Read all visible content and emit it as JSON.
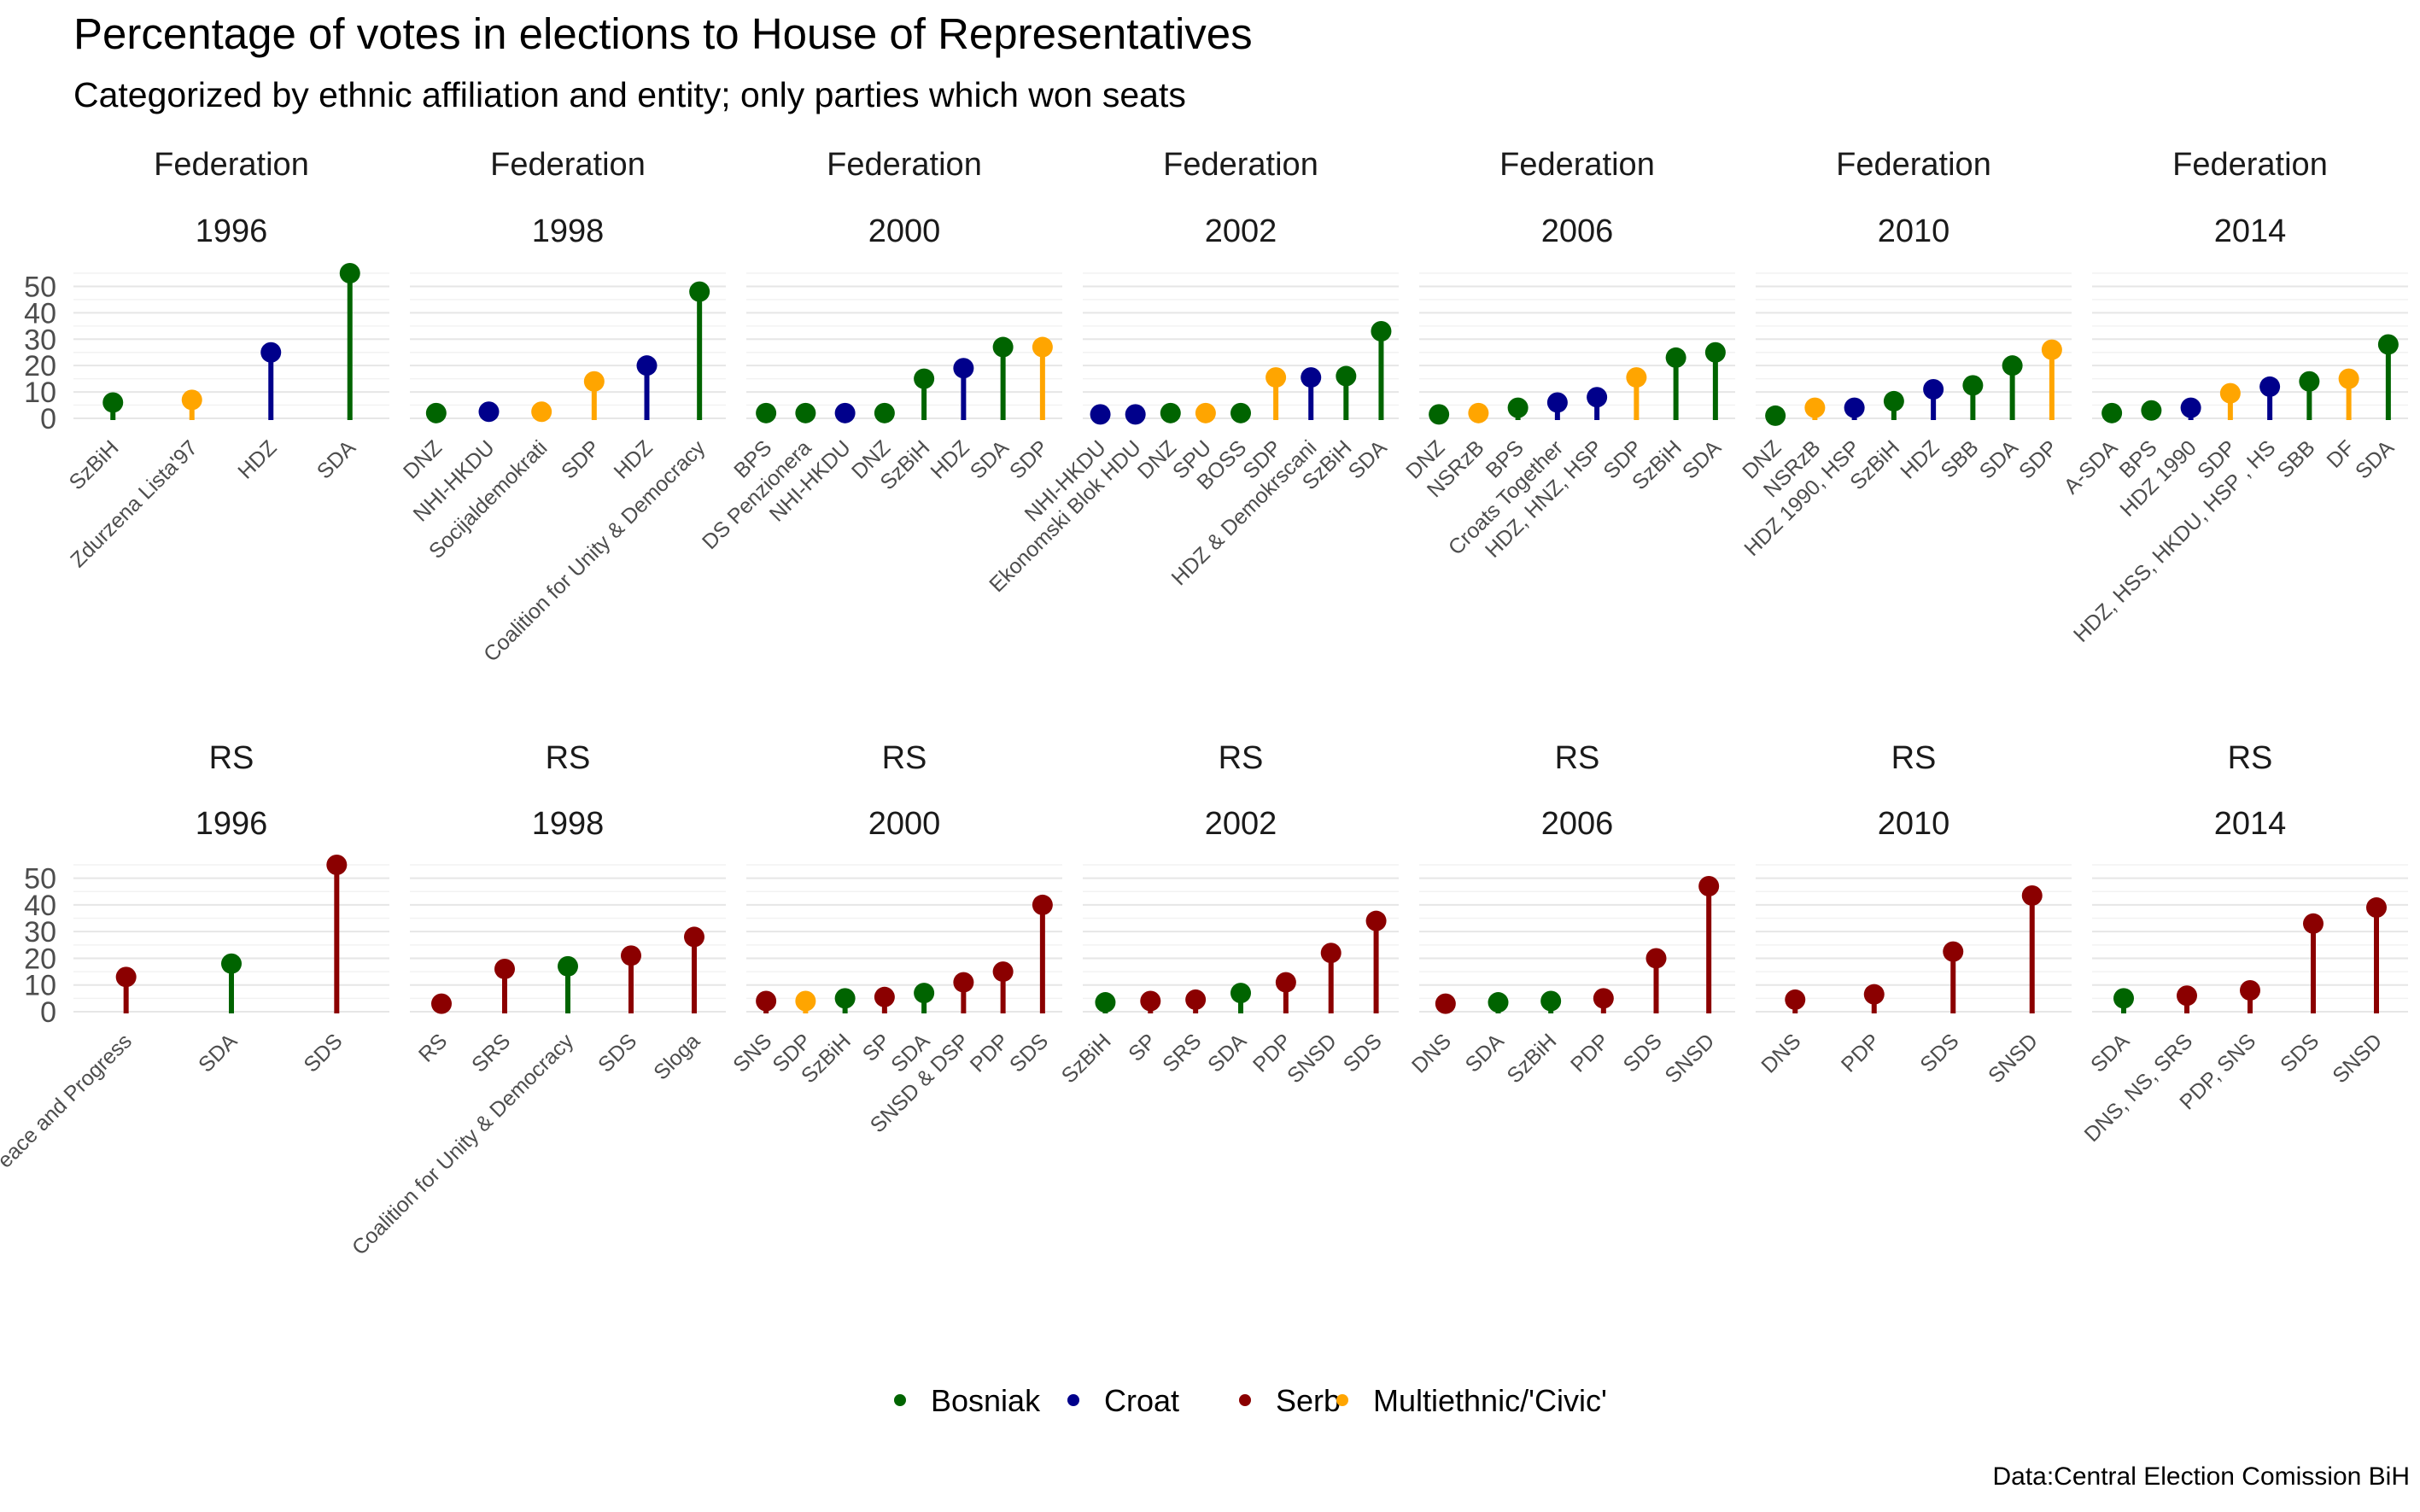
{
  "title": "Percentage of votes in elections to House of Representatives",
  "subtitle": "Categorized by ethnic affiliation and entity; only parties which won seats",
  "caption": "Data:Central Election Comission BiH",
  "chart_data": {
    "type": "lollipop",
    "facet_rows": [
      "Federation",
      "RS"
    ],
    "facet_cols": [
      "1996",
      "1998",
      "2000",
      "2002",
      "2006",
      "2010",
      "2014"
    ],
    "y_ticks": [
      0,
      10,
      20,
      30,
      40,
      50
    ],
    "ylim": [
      0,
      55
    ],
    "colors": {
      "Bosniak": "#006400",
      "Croat": "#00008B",
      "Serb": "#8B0000",
      "Multiethnic/'Civic'": "#FFA500"
    },
    "legend": {
      "position": "bottom",
      "entries": [
        "Bosniak",
        "Croat",
        "Serb",
        "Multiethnic/'Civic'"
      ]
    },
    "facets": [
      {
        "entity": "Federation",
        "year": "1996",
        "parties": [
          {
            "party": "SzBiH",
            "value": 6,
            "group": "Bosniak"
          },
          {
            "party": "Zdurzena Lista'97",
            "value": 7,
            "group": "Multiethnic/'Civic'"
          },
          {
            "party": "HDZ",
            "value": 25,
            "group": "Croat"
          },
          {
            "party": "SDA",
            "value": 55,
            "group": "Bosniak"
          }
        ]
      },
      {
        "entity": "Federation",
        "year": "1998",
        "parties": [
          {
            "party": "DNZ",
            "value": 2,
            "group": "Bosniak"
          },
          {
            "party": "NHI-HKDU",
            "value": 2.5,
            "group": "Croat"
          },
          {
            "party": "Socijaldemokrati",
            "value": 2.5,
            "group": "Multiethnic/'Civic'"
          },
          {
            "party": "SDP",
            "value": 14,
            "group": "Multiethnic/'Civic'"
          },
          {
            "party": "HDZ",
            "value": 20,
            "group": "Croat"
          },
          {
            "party": "Coalition for Unity & Democracy",
            "value": 48,
            "group": "Bosniak"
          }
        ]
      },
      {
        "entity": "Federation",
        "year": "2000",
        "parties": [
          {
            "party": "BPS",
            "value": 2,
            "group": "Bosniak"
          },
          {
            "party": "DS Penzionera",
            "value": 2,
            "group": "Bosniak"
          },
          {
            "party": "NHI-HKDU",
            "value": 2,
            "group": "Croat"
          },
          {
            "party": "DNZ",
            "value": 2,
            "group": "Bosniak"
          },
          {
            "party": "SzBiH",
            "value": 15,
            "group": "Bosniak"
          },
          {
            "party": "HDZ",
            "value": 19,
            "group": "Croat"
          },
          {
            "party": "SDA",
            "value": 27,
            "group": "Bosniak"
          },
          {
            "party": "SDP",
            "value": 27,
            "group": "Multiethnic/'Civic'"
          }
        ]
      },
      {
        "entity": "Federation",
        "year": "2002",
        "parties": [
          {
            "party": "NHI-HKDU",
            "value": 1.5,
            "group": "Croat"
          },
          {
            "party": "Ekonomski Blok HDU",
            "value": 1.5,
            "group": "Croat"
          },
          {
            "party": "DNZ",
            "value": 2,
            "group": "Bosniak"
          },
          {
            "party": "SPU",
            "value": 2,
            "group": "Multiethnic/'Civic'"
          },
          {
            "party": "BOSS",
            "value": 2,
            "group": "Bosniak"
          },
          {
            "party": "SDP",
            "value": 15.5,
            "group": "Multiethnic/'Civic'"
          },
          {
            "party": "HDZ & Demokrscani",
            "value": 15.5,
            "group": "Croat"
          },
          {
            "party": "SzBiH",
            "value": 16,
            "group": "Bosniak"
          },
          {
            "party": "SDA",
            "value": 33,
            "group": "Bosniak"
          }
        ]
      },
      {
        "entity": "Federation",
        "year": "2006",
        "parties": [
          {
            "party": "DNZ",
            "value": 1.5,
            "group": "Bosniak"
          },
          {
            "party": "NSRzB",
            "value": 2,
            "group": "Multiethnic/'Civic'"
          },
          {
            "party": "BPS",
            "value": 4,
            "group": "Bosniak"
          },
          {
            "party": "Croats Together",
            "value": 6,
            "group": "Croat"
          },
          {
            "party": "HDZ, HNZ, HSP",
            "value": 8,
            "group": "Croat"
          },
          {
            "party": "SDP",
            "value": 15.5,
            "group": "Multiethnic/'Civic'"
          },
          {
            "party": "SzBiH",
            "value": 23,
            "group": "Bosniak"
          },
          {
            "party": "SDA",
            "value": 25,
            "group": "Bosniak"
          }
        ]
      },
      {
        "entity": "Federation",
        "year": "2010",
        "parties": [
          {
            "party": "DNZ",
            "value": 1,
            "group": "Bosniak"
          },
          {
            "party": "NSRzB",
            "value": 4,
            "group": "Multiethnic/'Civic'"
          },
          {
            "party": "HDZ 1990, HSP",
            "value": 4,
            "group": "Croat"
          },
          {
            "party": "SzBiH",
            "value": 6.5,
            "group": "Bosniak"
          },
          {
            "party": "HDZ",
            "value": 11,
            "group": "Croat"
          },
          {
            "party": "SBB",
            "value": 12.5,
            "group": "Bosniak"
          },
          {
            "party": "SDA",
            "value": 20,
            "group": "Bosniak"
          },
          {
            "party": "SDP",
            "value": 26,
            "group": "Multiethnic/'Civic'"
          }
        ]
      },
      {
        "entity": "Federation",
        "year": "2014",
        "parties": [
          {
            "party": "A-SDA",
            "value": 2,
            "group": "Bosniak"
          },
          {
            "party": "BPS",
            "value": 3,
            "group": "Bosniak"
          },
          {
            "party": "HDZ 1990",
            "value": 4,
            "group": "Croat"
          },
          {
            "party": "SDP",
            "value": 9.5,
            "group": "Multiethnic/'Civic'"
          },
          {
            "party": "HDZ, HSS, HKDU, HSP , HS",
            "value": 12,
            "group": "Croat"
          },
          {
            "party": "SBB",
            "value": 14,
            "group": "Bosniak"
          },
          {
            "party": "DF",
            "value": 15,
            "group": "Multiethnic/'Civic'"
          },
          {
            "party": "SDA",
            "value": 28,
            "group": "Bosniak"
          }
        ]
      },
      {
        "entity": "RS",
        "year": "1996",
        "parties": [
          {
            "party": "Alliance for Peace and Progress",
            "value": 13,
            "group": "Serb"
          },
          {
            "party": "SDA",
            "value": 18,
            "group": "Bosniak"
          },
          {
            "party": "SDS",
            "value": 55,
            "group": "Serb"
          }
        ]
      },
      {
        "entity": "RS",
        "year": "1998",
        "parties": [
          {
            "party": "RS",
            "value": 3,
            "group": "Serb"
          },
          {
            "party": "SRS",
            "value": 16,
            "group": "Serb"
          },
          {
            "party": "Coalition for Unity & Democracy",
            "value": 17,
            "group": "Bosniak"
          },
          {
            "party": "SDS",
            "value": 21,
            "group": "Serb"
          },
          {
            "party": "Sloga",
            "value": 28,
            "group": "Serb"
          }
        ]
      },
      {
        "entity": "RS",
        "year": "2000",
        "parties": [
          {
            "party": "SNS",
            "value": 4,
            "group": "Serb"
          },
          {
            "party": "SDP",
            "value": 4,
            "group": "Multiethnic/'Civic'"
          },
          {
            "party": "SzBiH",
            "value": 5,
            "group": "Bosniak"
          },
          {
            "party": "SP",
            "value": 5.5,
            "group": "Serb"
          },
          {
            "party": "SDA",
            "value": 7,
            "group": "Bosniak"
          },
          {
            "party": "SNSD & DSP",
            "value": 11,
            "group": "Serb"
          },
          {
            "party": "PDP",
            "value": 15,
            "group": "Serb"
          },
          {
            "party": "SDS",
            "value": 40,
            "group": "Serb"
          }
        ]
      },
      {
        "entity": "RS",
        "year": "2002",
        "parties": [
          {
            "party": "SzBiH",
            "value": 3.5,
            "group": "Bosniak"
          },
          {
            "party": "SP",
            "value": 4,
            "group": "Serb"
          },
          {
            "party": "SRS",
            "value": 4.5,
            "group": "Serb"
          },
          {
            "party": "SDA",
            "value": 7,
            "group": "Bosniak"
          },
          {
            "party": "PDP",
            "value": 11,
            "group": "Serb"
          },
          {
            "party": "SNSD",
            "value": 22,
            "group": "Serb"
          },
          {
            "party": "SDS",
            "value": 34,
            "group": "Serb"
          }
        ]
      },
      {
        "entity": "RS",
        "year": "2006",
        "parties": [
          {
            "party": "DNS",
            "value": 3,
            "group": "Serb"
          },
          {
            "party": "SDA",
            "value": 3.5,
            "group": "Bosniak"
          },
          {
            "party": "SzBiH",
            "value": 4,
            "group": "Bosniak"
          },
          {
            "party": "PDP",
            "value": 5,
            "group": "Serb"
          },
          {
            "party": "SDS",
            "value": 20,
            "group": "Serb"
          },
          {
            "party": "SNSD",
            "value": 47,
            "group": "Serb"
          }
        ]
      },
      {
        "entity": "RS",
        "year": "2010",
        "parties": [
          {
            "party": "DNS",
            "value": 4.5,
            "group": "Serb"
          },
          {
            "party": "PDP",
            "value": 6.5,
            "group": "Serb"
          },
          {
            "party": "SDS",
            "value": 22.5,
            "group": "Serb"
          },
          {
            "party": "SNSD",
            "value": 43.5,
            "group": "Serb"
          }
        ]
      },
      {
        "entity": "RS",
        "year": "2014",
        "parties": [
          {
            "party": "SDA",
            "value": 5,
            "group": "Bosniak"
          },
          {
            "party": "DNS, NS, SRS",
            "value": 6,
            "group": "Serb"
          },
          {
            "party": "PDP, SNS",
            "value": 8,
            "group": "Serb"
          },
          {
            "party": "SDS",
            "value": 33,
            "group": "Serb"
          },
          {
            "party": "SNSD",
            "value": 39,
            "group": "Serb"
          }
        ]
      }
    ]
  }
}
